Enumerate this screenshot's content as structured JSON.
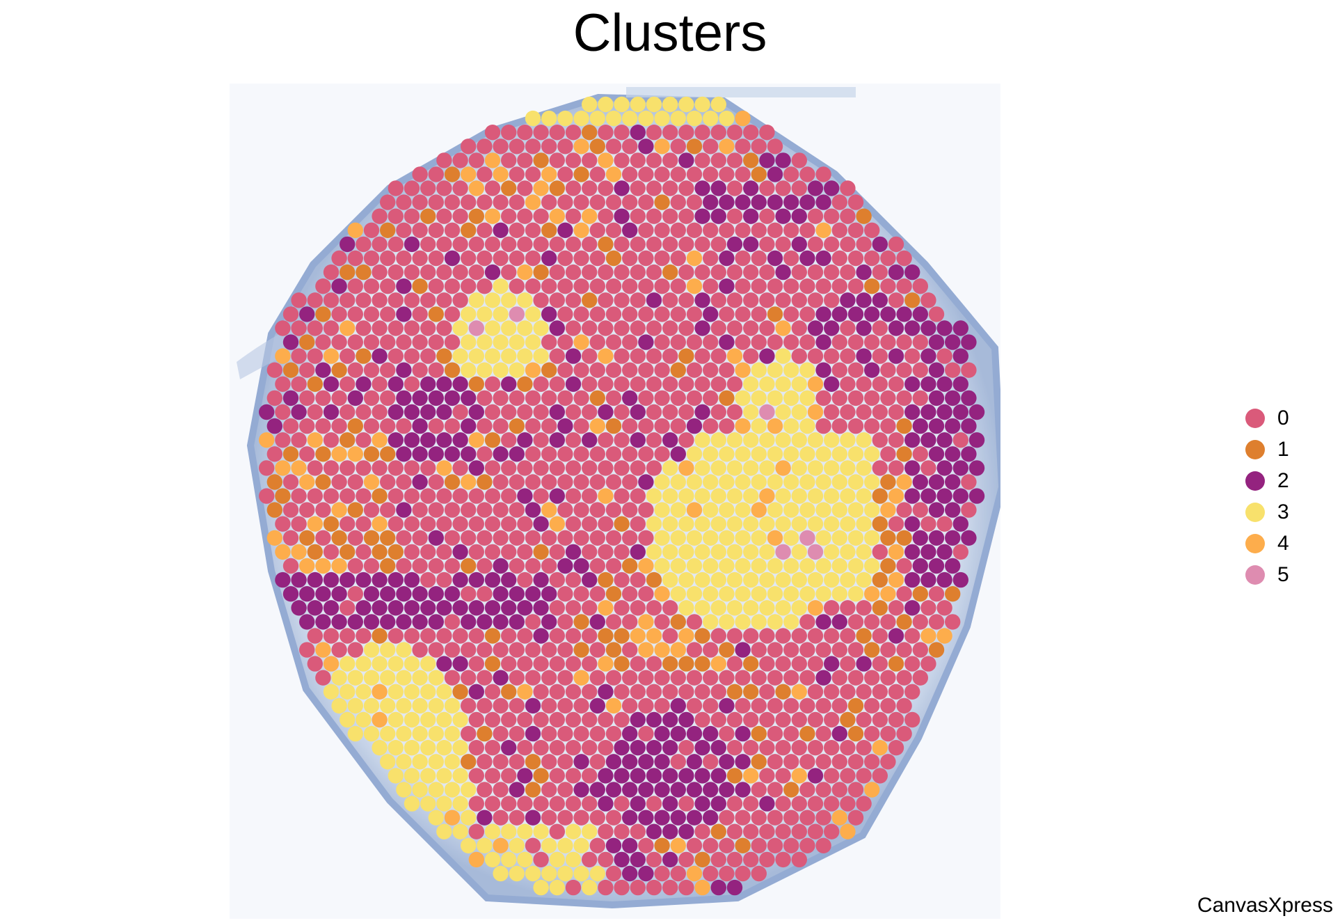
{
  "chart_data": {
    "type": "scatter",
    "title": "Clusters",
    "legend_position": "right",
    "legend": [
      {
        "label": "0",
        "color": "#DA5A7A"
      },
      {
        "label": "1",
        "color": "#DE7F2E"
      },
      {
        "label": "2",
        "color": "#94237F"
      },
      {
        "label": "3",
        "color": "#F8E16C"
      },
      {
        "label": "4",
        "color": "#FDAD4C"
      },
      {
        "label": "5",
        "color": "#DE8CB0"
      }
    ],
    "background": "tissue-image",
    "marker": "circle",
    "grid": false,
    "axes_visible": false
  },
  "watermark": "CanvasXpress"
}
